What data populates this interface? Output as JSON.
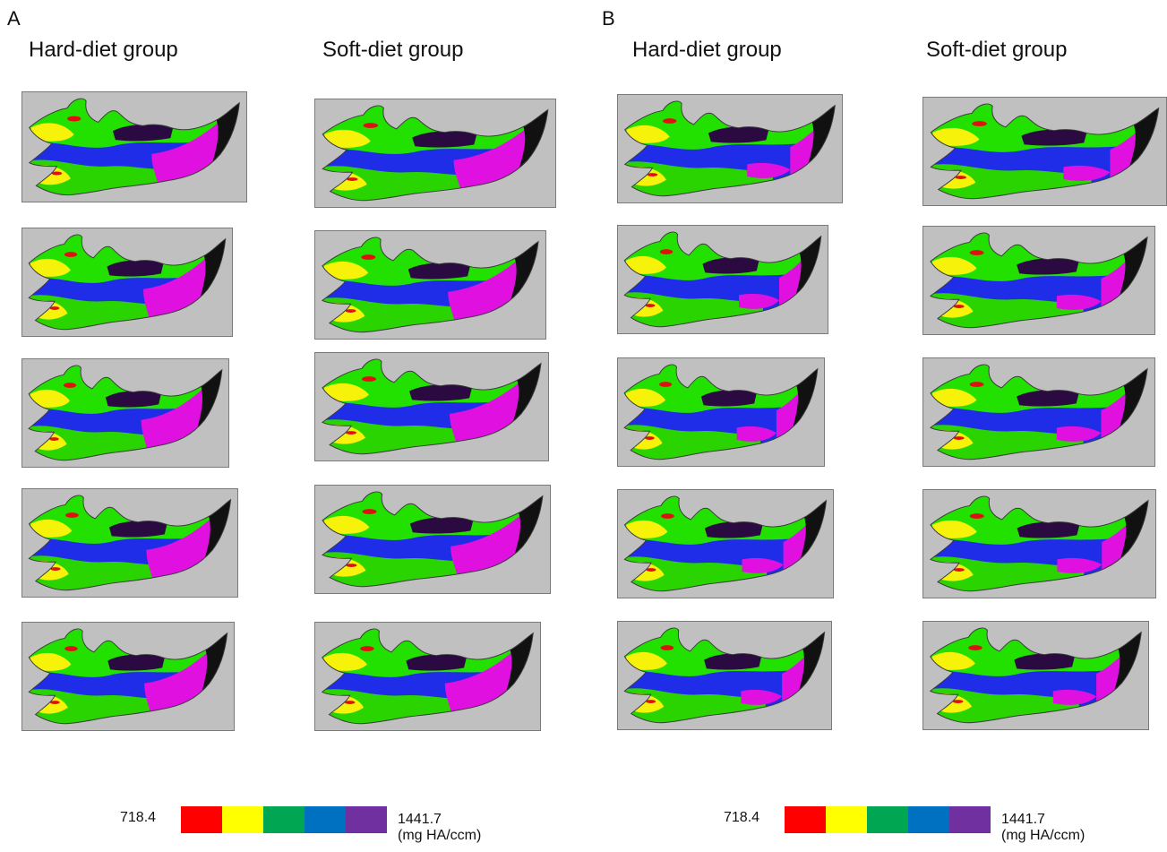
{
  "panels": [
    {
      "letter": "A",
      "groups": [
        {
          "title": "Hard-diet group"
        },
        {
          "title": "Soft-diet group"
        }
      ],
      "scale": {
        "min": "718.4",
        "max": "1441.7",
        "unit": "(mg HA/ccm)"
      }
    },
    {
      "letter": "B",
      "groups": [
        {
          "title": "Hard-diet group"
        },
        {
          "title": "Soft-diet group"
        }
      ],
      "scale": {
        "min": "718.4",
        "max": "1441.7",
        "unit": "(mg HA/ccm)"
      }
    }
  ],
  "colors": {
    "scale": [
      "#ff0000",
      "#ffff00",
      "#00a651",
      "#0070c0",
      "#7030a0"
    ],
    "background": "#c0c0c0"
  }
}
